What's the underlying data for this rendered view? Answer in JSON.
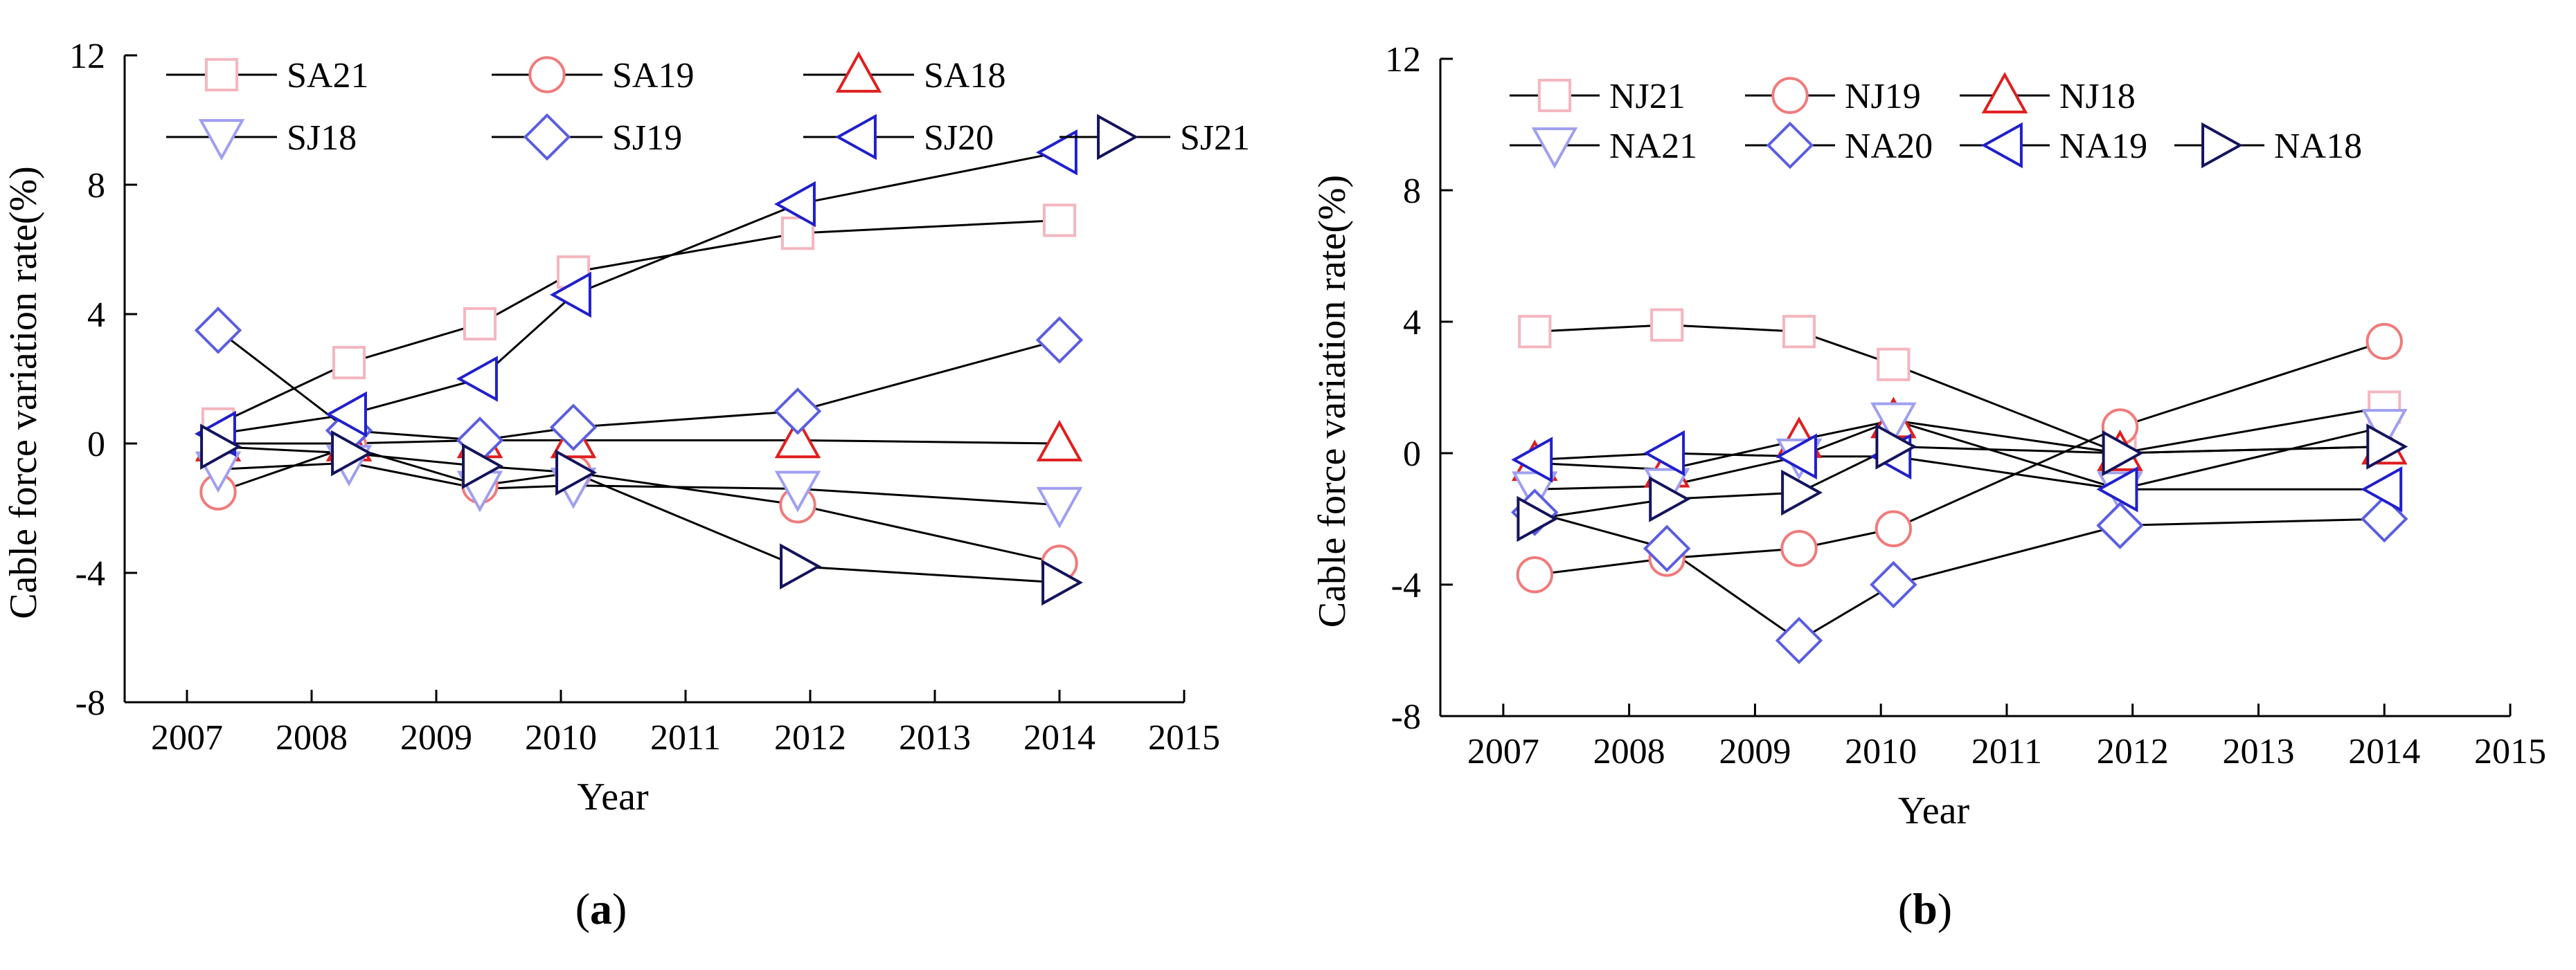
{
  "chart_data": [
    {
      "type": "line",
      "panel_label": "a",
      "xlabel": "Year",
      "ylabel": "Cable force variation rate(%)",
      "xlim": [
        2006.5,
        2015
      ],
      "ylim": [
        -8,
        12
      ],
      "x_ticks": [
        "2007",
        "2008",
        "2009",
        "2010",
        "2011",
        "2012",
        "2013",
        "2014",
        "2015"
      ],
      "y_ticks": [
        "12",
        "8",
        "4",
        "0",
        "-4",
        "-8"
      ],
      "x": [
        2007.25,
        2008.3,
        2009.35,
        2010.1,
        2011.9,
        2014
      ],
      "series": [
        {
          "name": "SA21",
          "marker": "square",
          "color": "#f4b6bf",
          "values": [
            0.6,
            2.5,
            3.7,
            5.3,
            6.5,
            6.9
          ]
        },
        {
          "name": "SA19",
          "marker": "circle",
          "color": "#ef7b7b",
          "values": [
            -1.5,
            -0.1,
            -1.3,
            -0.9,
            -1.9,
            -3.7
          ]
        },
        {
          "name": "SA18",
          "marker": "triangle-up",
          "color": "#e01e1e",
          "values": [
            0.0,
            0.0,
            0.1,
            0.1,
            0.1,
            0.0
          ]
        },
        {
          "name": "SJ18",
          "marker": "triangle-down",
          "color": "#9f9ff0",
          "values": [
            -0.8,
            -0.6,
            -1.4,
            -1.3,
            -1.4,
            -1.9
          ]
        },
        {
          "name": "SJ19",
          "marker": "diamond",
          "color": "#5a5ee0",
          "values": [
            3.5,
            0.4,
            0.1,
            0.5,
            1.0,
            3.2
          ]
        },
        {
          "name": "SJ20",
          "marker": "triangle-left",
          "color": "#2020cc",
          "values": [
            0.3,
            0.9,
            2.0,
            4.6,
            7.4,
            9.0
          ]
        },
        {
          "name": "SJ21",
          "marker": "triangle-right",
          "color": "#14145c",
          "values": [
            -0.1,
            -0.3,
            -0.7,
            -0.9,
            -3.8,
            -4.3
          ]
        }
      ]
    },
    {
      "type": "line",
      "panel_label": "b",
      "xlabel": "Year",
      "ylabel": "Cable force variation rate(%)",
      "xlim": [
        2006.5,
        2015
      ],
      "ylim": [
        -8,
        12
      ],
      "x_ticks": [
        "2007",
        "2008",
        "2009",
        "2010",
        "2011",
        "2012",
        "2013",
        "2014",
        "2015"
      ],
      "y_ticks": [
        "12",
        "8",
        "4",
        "0",
        "-4",
        "-8"
      ],
      "x": [
        2007.25,
        2008.3,
        2009.35,
        2010.1,
        2011.9,
        2014
      ],
      "series": [
        {
          "name": "NJ21",
          "marker": "square",
          "color": "#f4b6bf",
          "values": [
            3.7,
            3.9,
            3.7,
            2.7,
            0.0,
            1.4
          ]
        },
        {
          "name": "NJ19",
          "marker": "circle",
          "color": "#ef7b7b",
          "values": [
            -3.7,
            -3.2,
            -2.9,
            -2.3,
            0.8,
            3.4
          ]
        },
        {
          "name": "NJ18",
          "marker": "triangle-up",
          "color": "#e01e1e",
          "values": [
            -0.3,
            -0.5,
            0.4,
            1.0,
            0.0,
            0.2
          ]
        },
        {
          "name": "NA21",
          "marker": "triangle-down",
          "color": "#9f9ff0",
          "values": [
            -1.1,
            -1.0,
            -0.1,
            1.0,
            -1.1,
            0.8
          ]
        },
        {
          "name": "NA20",
          "marker": "diamond",
          "color": "#5a5ee0",
          "values": [
            -1.8,
            -2.9,
            -5.7,
            -4.0,
            -2.2,
            -2.0
          ]
        },
        {
          "name": "NA19",
          "marker": "triangle-left",
          "color": "#2020cc",
          "values": [
            -0.2,
            0.0,
            -0.1,
            -0.1,
            -1.1,
            -1.1
          ]
        },
        {
          "name": "NA18",
          "marker": "triangle-right",
          "color": "#14145c",
          "values": [
            -2.0,
            -1.4,
            -1.2,
            0.2,
            0.0,
            0.2
          ]
        }
      ]
    }
  ]
}
